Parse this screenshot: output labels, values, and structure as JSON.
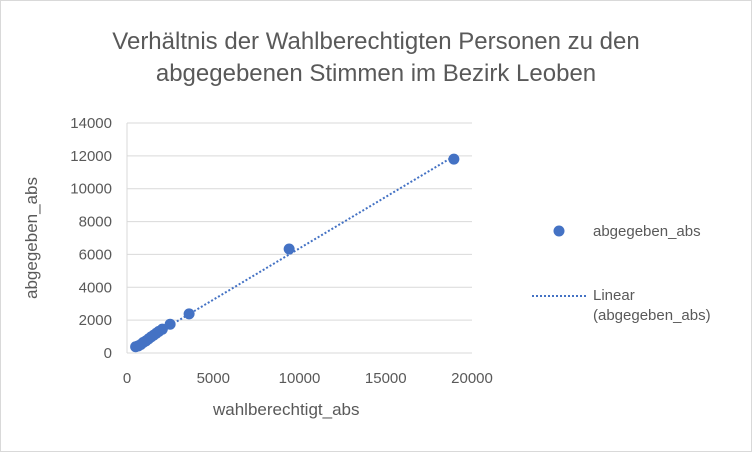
{
  "chart_data": {
    "type": "scatter",
    "title_lines": [
      "Verhältnis der Wahlberechtigten Personen zu den",
      "abgegebenen Stimmen im Bezirk Leoben"
    ],
    "xlabel": "wahlberechtigt_abs",
    "ylabel": "abgegeben_abs",
    "xlim": [
      0,
      20000
    ],
    "ylim": [
      0,
      14000
    ],
    "x_ticks": [
      "0",
      "5000",
      "10000",
      "15000",
      "20000"
    ],
    "y_ticks": [
      "0",
      "2000",
      "4000",
      "6000",
      "8000",
      "10000",
      "12000",
      "14000"
    ],
    "grid": "horizontal",
    "legend_position": "right",
    "series": [
      {
        "name": "abgegeben_abs",
        "color": "#4472c4",
        "marker": "circle",
        "points": [
          {
            "x": 500,
            "y": 380
          },
          {
            "x": 650,
            "y": 430
          },
          {
            "x": 800,
            "y": 520
          },
          {
            "x": 950,
            "y": 650
          },
          {
            "x": 1100,
            "y": 740
          },
          {
            "x": 1250,
            "y": 860
          },
          {
            "x": 1400,
            "y": 980
          },
          {
            "x": 1550,
            "y": 1090
          },
          {
            "x": 1700,
            "y": 1200
          },
          {
            "x": 1850,
            "y": 1320
          },
          {
            "x": 2050,
            "y": 1450
          },
          {
            "x": 2500,
            "y": 1750
          },
          {
            "x": 3600,
            "y": 2380
          },
          {
            "x": 9400,
            "y": 6330
          },
          {
            "x": 18950,
            "y": 11800
          }
        ]
      }
    ],
    "trendline": {
      "name_lines": [
        "Linear",
        "(abgegeben_abs)"
      ],
      "type": "linear",
      "color": "#4472c4",
      "style": "dotted"
    }
  }
}
